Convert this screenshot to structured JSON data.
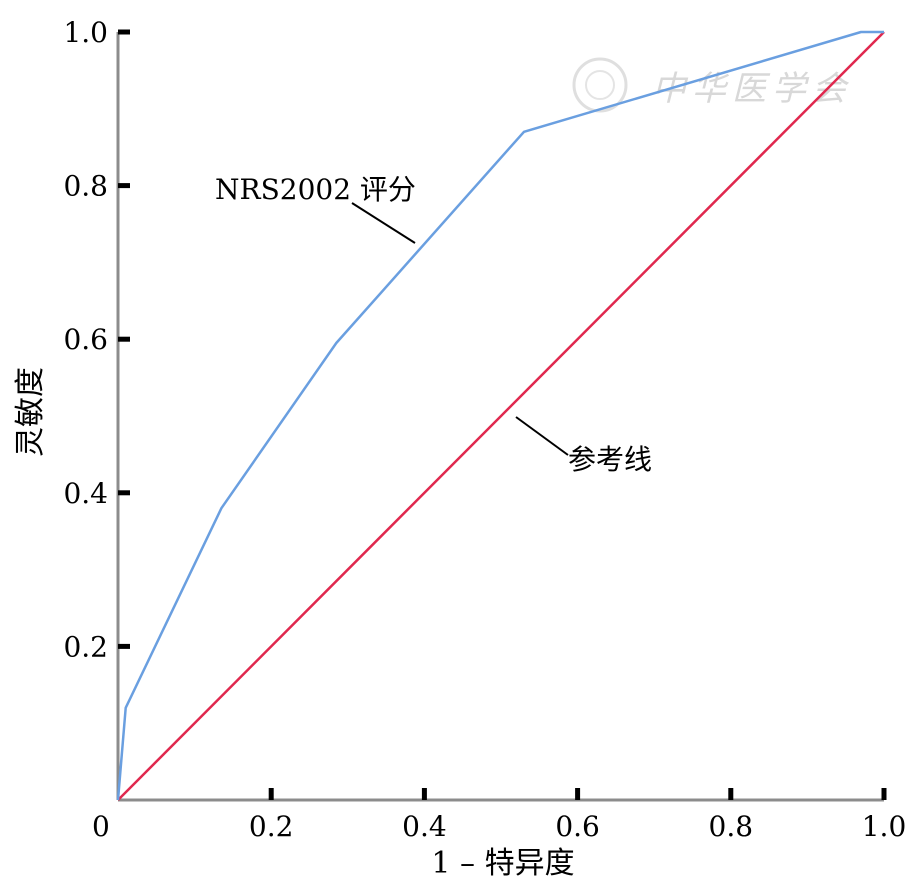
{
  "chart_data": {
    "type": "line",
    "title": "",
    "xlabel": "1 – 特异度",
    "ylabel": "灵敏度",
    "xlim": [
      0,
      1
    ],
    "ylim": [
      0,
      1
    ],
    "x_ticks": [
      "0",
      "0.2",
      "0.4",
      "0.6",
      "0.8",
      "1.0"
    ],
    "y_ticks": [
      "0.2",
      "0.4",
      "0.6",
      "0.8",
      "1.0"
    ],
    "grid": false,
    "series": [
      {
        "name": "NRS2002 评分",
        "color": "#6a9fe0",
        "x": [
          0,
          0.01,
          0.135,
          0.285,
          0.53,
          0.97,
          1.0
        ],
        "y": [
          0,
          0.12,
          0.38,
          0.595,
          0.87,
          1.0,
          1.0
        ]
      },
      {
        "name": "参考线",
        "color": "#e0284e",
        "x": [
          0,
          1
        ],
        "y": [
          0,
          1
        ]
      }
    ],
    "annotations": [
      {
        "text": "NRS2002 评分",
        "series": 0
      },
      {
        "text": "参考线",
        "series": 1
      }
    ]
  },
  "watermark": "中华医学会"
}
